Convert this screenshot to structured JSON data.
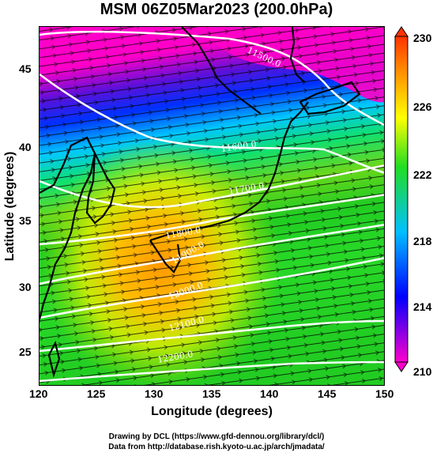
{
  "title": "MSM 06Z05Mar2023 (200.0hPa)",
  "x_axis": {
    "label": "Longitude (degrees)",
    "ticks": [
      "120",
      "125",
      "130",
      "135",
      "140",
      "145",
      "150"
    ],
    "range": [
      120,
      150
    ]
  },
  "y_axis": {
    "label": "Latitude  (degrees)",
    "ticks": [
      "25",
      "30",
      "35",
      "40",
      "45"
    ],
    "range": [
      23,
      48
    ]
  },
  "colorbar": {
    "ticks": [
      "210",
      "214",
      "218",
      "222",
      "226",
      "230"
    ],
    "range": [
      210,
      230
    ],
    "colors": [
      "#ff00cc",
      "#0000ff",
      "#00c0ff",
      "#22dd22",
      "#ffff00",
      "#ff8800",
      "#ff3300"
    ]
  },
  "contours": [
    {
      "label": "11500.0"
    },
    {
      "label": "11600.0"
    },
    {
      "label": "11700.0"
    },
    {
      "label": "11800.0"
    },
    {
      "label": "11900.0"
    },
    {
      "label": "12000.0"
    },
    {
      "label": "12100.0"
    },
    {
      "label": "12200.0"
    }
  ],
  "credits": {
    "line1": "Drawing by DCL (https://www.gfd-dennou.org/library/dcl/)",
    "line2": "Data from http://database.rish.kyoto-u.ac.jp/arch/jmadata/"
  }
}
